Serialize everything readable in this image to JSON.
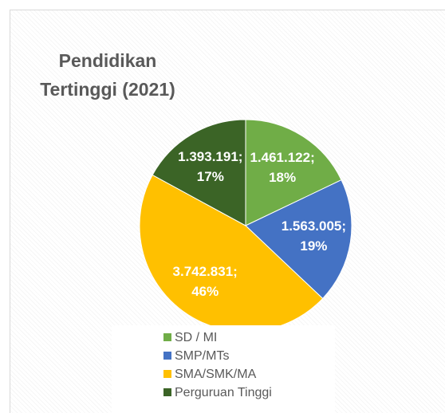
{
  "chart_data": {
    "type": "pie",
    "title": "Pendidikan Tertinggi (2021)",
    "categories": [
      "SD / MI",
      "SMP/MTs",
      "SMA/SMK/MA",
      "Perguruan Tinggi"
    ],
    "values": [
      1461122,
      1563005,
      3742831,
      1393191
    ],
    "value_labels": [
      "1.461.122; 18%",
      "1.563.005; 19%",
      "3.742.831; 46%",
      "1.393.191; 17%"
    ],
    "colors": [
      "#70ad47",
      "#4472c4",
      "#ffc000",
      "#3b6426"
    ],
    "legend": "bottom"
  }
}
